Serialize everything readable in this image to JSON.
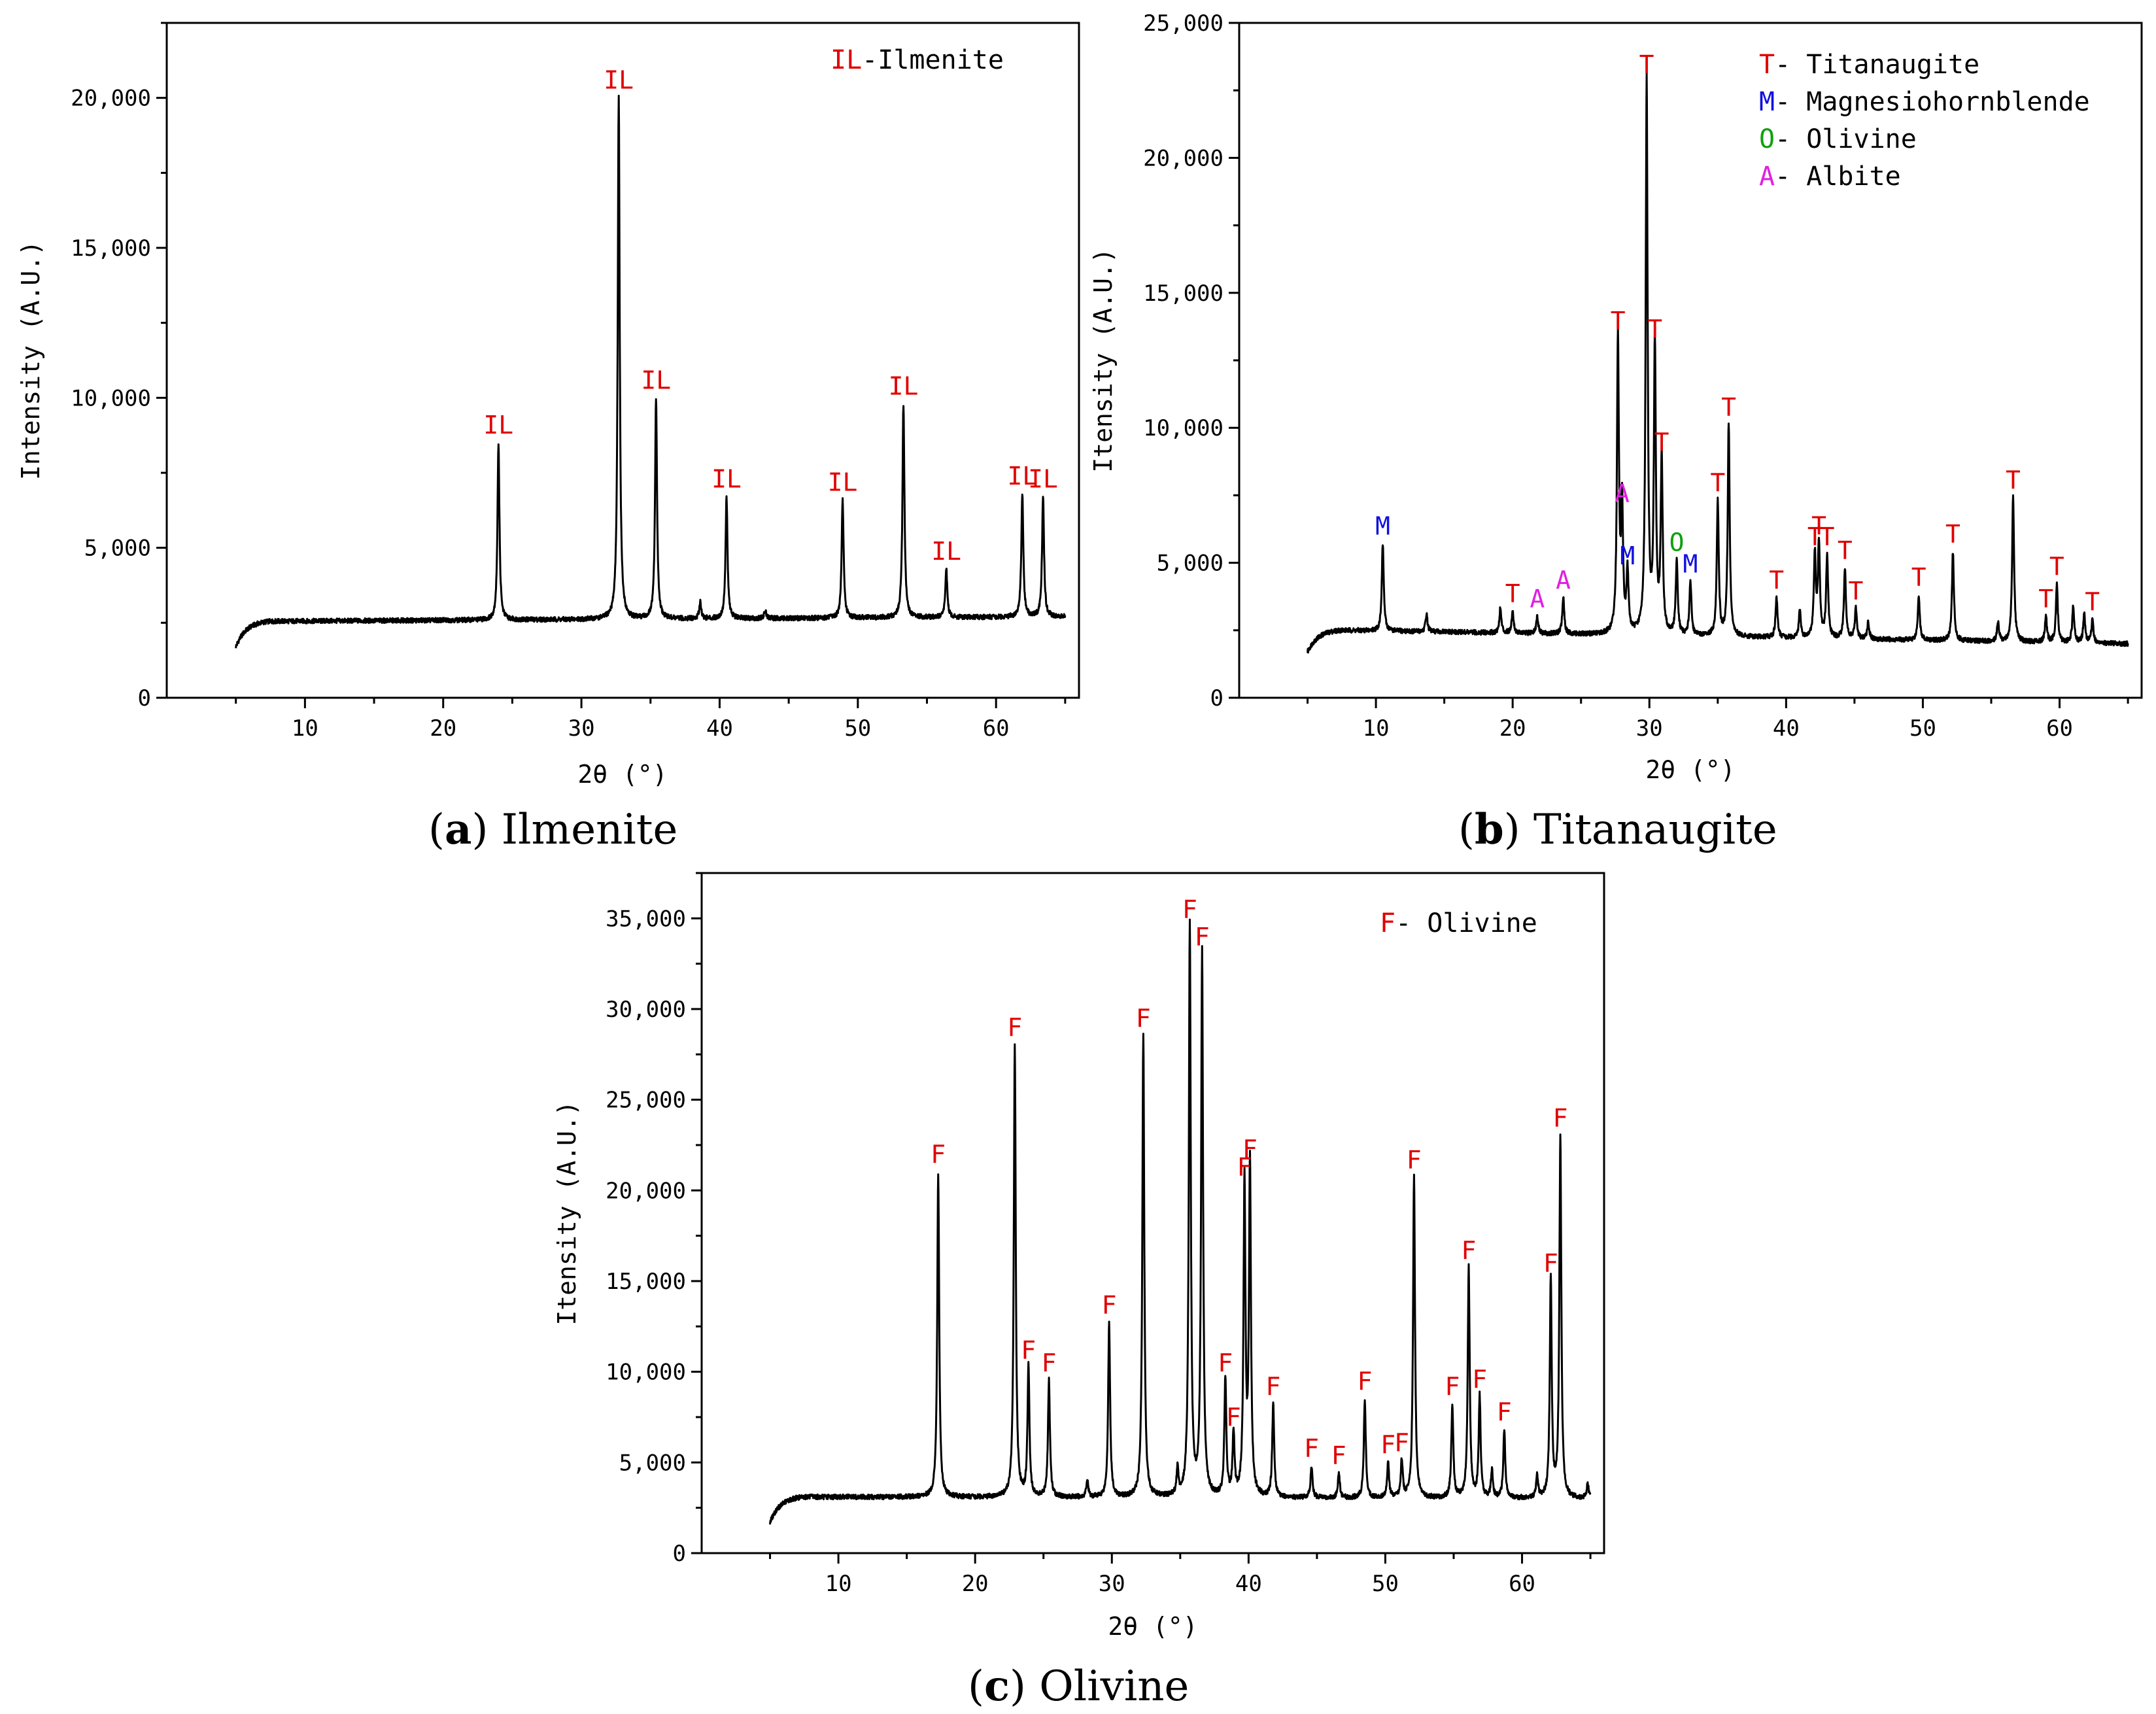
{
  "figure": {
    "panels": [
      {
        "letter": "a",
        "name": "Ilmenite"
      },
      {
        "letter": "b",
        "name": "Titanaugite"
      },
      {
        "letter": "c",
        "name": "Olivine"
      }
    ]
  },
  "chart_data": [
    {
      "type": "line",
      "panel": "a",
      "title": "(a) Ilmenite",
      "xlabel": "2θ (°)",
      "ylabel": "Intensity (A.U.)",
      "xlim": [
        0,
        66
      ],
      "ylim": [
        0,
        22500
      ],
      "xticks": [
        10,
        20,
        30,
        40,
        50,
        60
      ],
      "yticks": [
        0,
        5000,
        10000,
        15000,
        20000
      ],
      "ytick_labels": [
        "0",
        "5,000",
        "10,000",
        "15,000",
        "20,000"
      ],
      "baseline": {
        "start": 1700,
        "plateau": 2550,
        "end": 2700
      },
      "x_range": [
        5,
        65
      ],
      "legend": [
        {
          "symbol": "IL",
          "text": "-Ilmenite",
          "color": "#e00000"
        }
      ],
      "peaks": [
        {
          "x": 24.0,
          "y": 8500,
          "label": "IL",
          "color": "#e00000"
        },
        {
          "x": 32.7,
          "y": 20000,
          "label": "IL",
          "color": "#e00000"
        },
        {
          "x": 35.4,
          "y": 10000,
          "label": "IL",
          "color": "#e00000"
        },
        {
          "x": 40.5,
          "y": 6700,
          "label": "IL",
          "color": "#e00000"
        },
        {
          "x": 48.9,
          "y": 6600,
          "label": "IL",
          "color": "#e00000"
        },
        {
          "x": 53.3,
          "y": 9800,
          "label": "IL",
          "color": "#e00000"
        },
        {
          "x": 56.4,
          "y": 4300,
          "label": "IL",
          "color": "#e00000"
        },
        {
          "x": 61.9,
          "y": 6800,
          "label": "IL",
          "color": "#e00000"
        },
        {
          "x": 63.4,
          "y": 6700,
          "label": "IL",
          "color": "#e00000"
        }
      ],
      "minor_peaks": [
        {
          "x": 38.6,
          "y": 3200
        },
        {
          "x": 43.3,
          "y": 2900
        }
      ]
    },
    {
      "type": "line",
      "panel": "b",
      "title": "(b) Titanaugite",
      "xlabel": "2θ (°)",
      "ylabel": "Itensity (A.U.)",
      "xlim": [
        0,
        66
      ],
      "ylim": [
        0,
        25000
      ],
      "xticks": [
        10,
        20,
        30,
        40,
        50,
        60
      ],
      "yticks": [
        0,
        5000,
        10000,
        15000,
        20000,
        25000
      ],
      "ytick_labels": [
        "0",
        "5,000",
        "10,000",
        "15,000",
        "20,000",
        "25,000"
      ],
      "baseline": {
        "start": 1700,
        "plateau": 2500,
        "end": 2000
      },
      "x_range": [
        5,
        65
      ],
      "legend": [
        {
          "symbol": "T",
          "text": "- Titanaugite",
          "color": "#e00000"
        },
        {
          "symbol": "M",
          "text": "- Magnesiohornblende",
          "color": "#1010e0"
        },
        {
          "symbol": "O",
          "text": "- Olivine",
          "color": "#10a010"
        },
        {
          "symbol": "A",
          "text": "- Albite",
          "color": "#e020e0"
        }
      ],
      "peaks": [
        {
          "x": 10.5,
          "y": 5700,
          "label": "M",
          "color": "#1010e0"
        },
        {
          "x": 20.0,
          "y": 3200,
          "label": "T",
          "color": "#e00000"
        },
        {
          "x": 21.8,
          "y": 3000,
          "label": "A",
          "color": "#e020e0"
        },
        {
          "x": 23.7,
          "y": 3700,
          "label": "A",
          "color": "#e020e0"
        },
        {
          "x": 27.7,
          "y": 13300,
          "label": "T",
          "color": "#e00000"
        },
        {
          "x": 28.0,
          "y": 6900,
          "label": "A",
          "color": "#e020e0"
        },
        {
          "x": 28.4,
          "y": 4600,
          "label": "M",
          "color": "#1010e0"
        },
        {
          "x": 29.8,
          "y": 22800,
          "label": "T",
          "color": "#e00000"
        },
        {
          "x": 30.4,
          "y": 13000,
          "label": "T",
          "color": "#e00000"
        },
        {
          "x": 30.9,
          "y": 8800,
          "label": "T",
          "color": "#e00000"
        },
        {
          "x": 32.0,
          "y": 5100,
          "label": "O",
          "color": "#10a010"
        },
        {
          "x": 33.0,
          "y": 4300,
          "label": "M",
          "color": "#1010e0"
        },
        {
          "x": 35.0,
          "y": 7300,
          "label": "T",
          "color": "#e00000"
        },
        {
          "x": 35.8,
          "y": 10100,
          "label": "T",
          "color": "#e00000"
        },
        {
          "x": 39.3,
          "y": 3700,
          "label": "T",
          "color": "#e00000"
        },
        {
          "x": 42.1,
          "y": 5300,
          "label": "T",
          "color": "#e00000"
        },
        {
          "x": 42.4,
          "y": 5700,
          "label": "T",
          "color": "#e00000"
        },
        {
          "x": 43.0,
          "y": 5300,
          "label": "T",
          "color": "#e00000"
        },
        {
          "x": 44.3,
          "y": 4800,
          "label": "T",
          "color": "#e00000"
        },
        {
          "x": 45.1,
          "y": 3300,
          "label": "T",
          "color": "#e00000"
        },
        {
          "x": 49.7,
          "y": 3800,
          "label": "T",
          "color": "#e00000"
        },
        {
          "x": 52.2,
          "y": 5400,
          "label": "T",
          "color": "#e00000"
        },
        {
          "x": 56.6,
          "y": 7400,
          "label": "T",
          "color": "#e00000"
        },
        {
          "x": 59.0,
          "y": 3000,
          "label": "T",
          "color": "#e00000"
        },
        {
          "x": 59.8,
          "y": 4200,
          "label": "T",
          "color": "#e00000"
        },
        {
          "x": 62.4,
          "y": 2900,
          "label": "T",
          "color": "#e00000"
        }
      ],
      "minor_peaks": [
        {
          "x": 13.7,
          "y": 3100
        },
        {
          "x": 19.1,
          "y": 3300
        },
        {
          "x": 41.0,
          "y": 3200
        },
        {
          "x": 46.0,
          "y": 2800
        },
        {
          "x": 55.5,
          "y": 2800
        },
        {
          "x": 61.0,
          "y": 3400
        },
        {
          "x": 61.8,
          "y": 3100
        }
      ]
    },
    {
      "type": "line",
      "panel": "c",
      "title": "(c) Olivine",
      "xlabel": "2θ (°)",
      "ylabel": "Itensity (A.U.)",
      "xlim": [
        0,
        66
      ],
      "ylim": [
        0,
        37500
      ],
      "xticks": [
        10,
        20,
        30,
        40,
        50,
        60
      ],
      "yticks": [
        0,
        5000,
        10000,
        15000,
        20000,
        25000,
        30000,
        35000
      ],
      "ytick_labels": [
        "0",
        "5,000",
        "10,000",
        "15,000",
        "20,000",
        "25,000",
        "30,000",
        "35,000"
      ],
      "baseline": {
        "start": 1700,
        "plateau": 3100,
        "end": 3000
      },
      "x_range": [
        5,
        65
      ],
      "legend": [
        {
          "symbol": "F",
          "text": "- Olivine",
          "color": "#e00000"
        }
      ],
      "peaks": [
        {
          "x": 17.3,
          "y": 21000,
          "label": "F",
          "color": "#e00000"
        },
        {
          "x": 22.9,
          "y": 28000,
          "label": "F",
          "color": "#e00000"
        },
        {
          "x": 23.9,
          "y": 10200,
          "label": "F",
          "color": "#e00000"
        },
        {
          "x": 25.4,
          "y": 9500,
          "label": "F",
          "color": "#e00000"
        },
        {
          "x": 29.8,
          "y": 12700,
          "label": "F",
          "color": "#e00000"
        },
        {
          "x": 32.3,
          "y": 28500,
          "label": "F",
          "color": "#e00000"
        },
        {
          "x": 35.7,
          "y": 34500,
          "label": "F",
          "color": "#e00000"
        },
        {
          "x": 36.6,
          "y": 33000,
          "label": "F",
          "color": "#e00000"
        },
        {
          "x": 38.3,
          "y": 9500,
          "label": "F",
          "color": "#e00000"
        },
        {
          "x": 38.9,
          "y": 6500,
          "label": "F",
          "color": "#e00000"
        },
        {
          "x": 39.7,
          "y": 20300,
          "label": "F",
          "color": "#e00000"
        },
        {
          "x": 40.1,
          "y": 21300,
          "label": "F",
          "color": "#e00000"
        },
        {
          "x": 41.8,
          "y": 8200,
          "label": "F",
          "color": "#e00000"
        },
        {
          "x": 44.6,
          "y": 4800,
          "label": "F",
          "color": "#e00000"
        },
        {
          "x": 46.6,
          "y": 4400,
          "label": "F",
          "color": "#e00000"
        },
        {
          "x": 48.5,
          "y": 8500,
          "label": "F",
          "color": "#e00000"
        },
        {
          "x": 50.2,
          "y": 5000,
          "label": "F",
          "color": "#e00000"
        },
        {
          "x": 51.2,
          "y": 5100,
          "label": "F",
          "color": "#e00000"
        },
        {
          "x": 52.1,
          "y": 20700,
          "label": "F",
          "color": "#e00000"
        },
        {
          "x": 54.9,
          "y": 8200,
          "label": "F",
          "color": "#e00000"
        },
        {
          "x": 56.1,
          "y": 15700,
          "label": "F",
          "color": "#e00000"
        },
        {
          "x": 56.9,
          "y": 8600,
          "label": "F",
          "color": "#e00000"
        },
        {
          "x": 58.7,
          "y": 6800,
          "label": "F",
          "color": "#e00000"
        },
        {
          "x": 62.1,
          "y": 15000,
          "label": "F",
          "color": "#e00000"
        },
        {
          "x": 62.8,
          "y": 23000,
          "label": "F",
          "color": "#e00000"
        }
      ],
      "minor_peaks": [
        {
          "x": 28.2,
          "y": 4000
        },
        {
          "x": 34.8,
          "y": 4500
        },
        {
          "x": 57.8,
          "y": 4500
        },
        {
          "x": 61.1,
          "y": 4200
        },
        {
          "x": 64.8,
          "y": 3800
        }
      ]
    }
  ]
}
